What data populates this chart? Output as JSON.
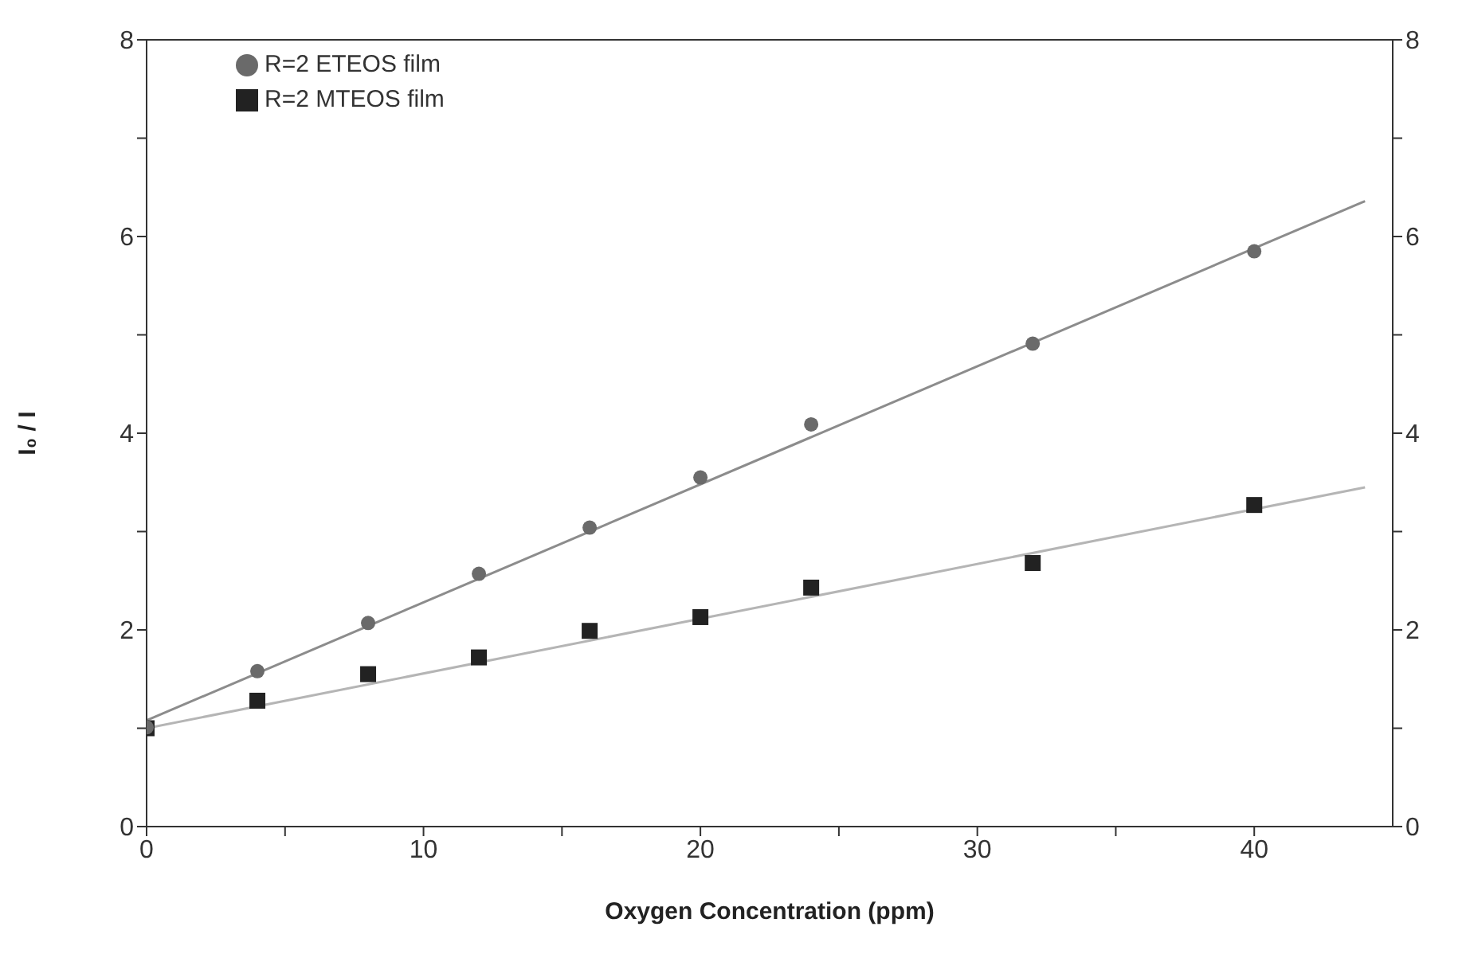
{
  "chart_data": {
    "type": "scatter",
    "xlabel": "Oxygen Concentration (ppm)",
    "ylabel": "I₀ / I",
    "xlim": [
      0,
      45
    ],
    "xticks": [
      0,
      {
        "value": 5,
        "label": null
      },
      10,
      {
        "value": 15,
        "label": null
      },
      20,
      {
        "value": 25,
        "label": null
      },
      30,
      {
        "value": 35,
        "label": null
      },
      40
    ],
    "ylim": [
      0,
      8
    ],
    "yticks": [
      0,
      {
        "value": 1,
        "label": null
      },
      2,
      {
        "value": 3,
        "label": null
      },
      4,
      {
        "value": 5,
        "label": null
      },
      6,
      {
        "value": 7,
        "label": null
      },
      8
    ],
    "y2lim": [
      0,
      8
    ],
    "y2ticks": [
      0,
      {
        "value": 1,
        "label": null
      },
      2,
      {
        "value": 3,
        "label": null
      },
      4,
      {
        "value": 5,
        "label": null
      },
      6,
      {
        "value": 7,
        "label": null
      },
      8
    ],
    "grid": false,
    "legend": "top left",
    "series": [
      {
        "name": "R=2 ETEOS film",
        "marker": "circle",
        "color": "#6a6a6a",
        "x": [
          0,
          4,
          8,
          12,
          16,
          20,
          24,
          32,
          40
        ],
        "values": [
          1.01,
          1.58,
          2.07,
          2.57,
          3.04,
          3.55,
          4.09,
          4.91,
          5.85
        ]
      },
      {
        "name": "R=2 MTEOS film",
        "marker": "square",
        "color": "#222222",
        "x": [
          0,
          4,
          8,
          12,
          16,
          20,
          24,
          32,
          40
        ],
        "values": [
          1.0,
          1.28,
          1.55,
          1.72,
          1.99,
          2.13,
          2.43,
          2.68,
          3.27
        ]
      },
      {
        "type": "line",
        "marker": "none",
        "color": "#8c8c8c",
        "x": [
          0,
          44
        ],
        "values": [
          1.08,
          6.36
        ]
      },
      {
        "type": "line",
        "marker": "none",
        "color": "#b5b5b5",
        "x": [
          0,
          44
        ],
        "values": [
          1.0,
          3.45
        ]
      }
    ]
  }
}
